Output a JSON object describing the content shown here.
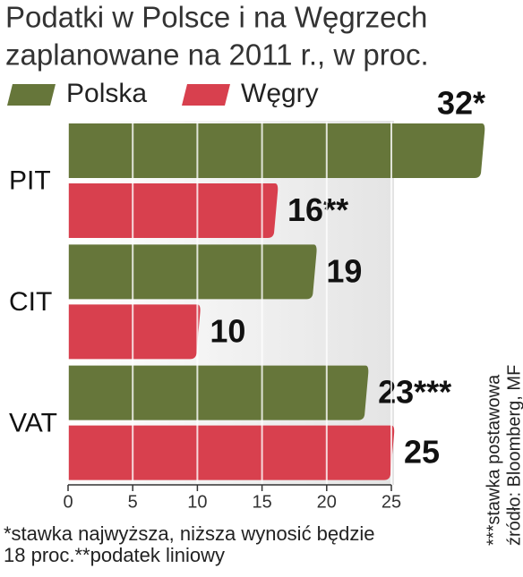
{
  "chart_data": {
    "type": "hbar",
    "title": [
      "Podatki w Polsce i na Węgrzech",
      "zaplanowane na 2011 r., w proc."
    ],
    "categories": [
      "PIT",
      "CIT",
      "VAT"
    ],
    "series": [
      {
        "name": "Polska",
        "color": "#66763a",
        "values": [
          32,
          19,
          23
        ],
        "value_labels": [
          "32*",
          "19",
          "23***"
        ]
      },
      {
        "name": "Węgry",
        "color": "#d8404e",
        "values": [
          16,
          10,
          25
        ],
        "value_labels": [
          "16**",
          "10",
          "25"
        ]
      }
    ],
    "xlim": [
      0,
      25
    ],
    "xticks": [
      0,
      5,
      10,
      15,
      20,
      25
    ],
    "grid": true,
    "footnote": [
      "*stawka najwyższa, niższa wynosić będzie",
      "18 proc.**podatek liniowy"
    ],
    "side_notes": [
      "***stawka postawowa",
      "źródło: Bloomberg, MF"
    ]
  }
}
